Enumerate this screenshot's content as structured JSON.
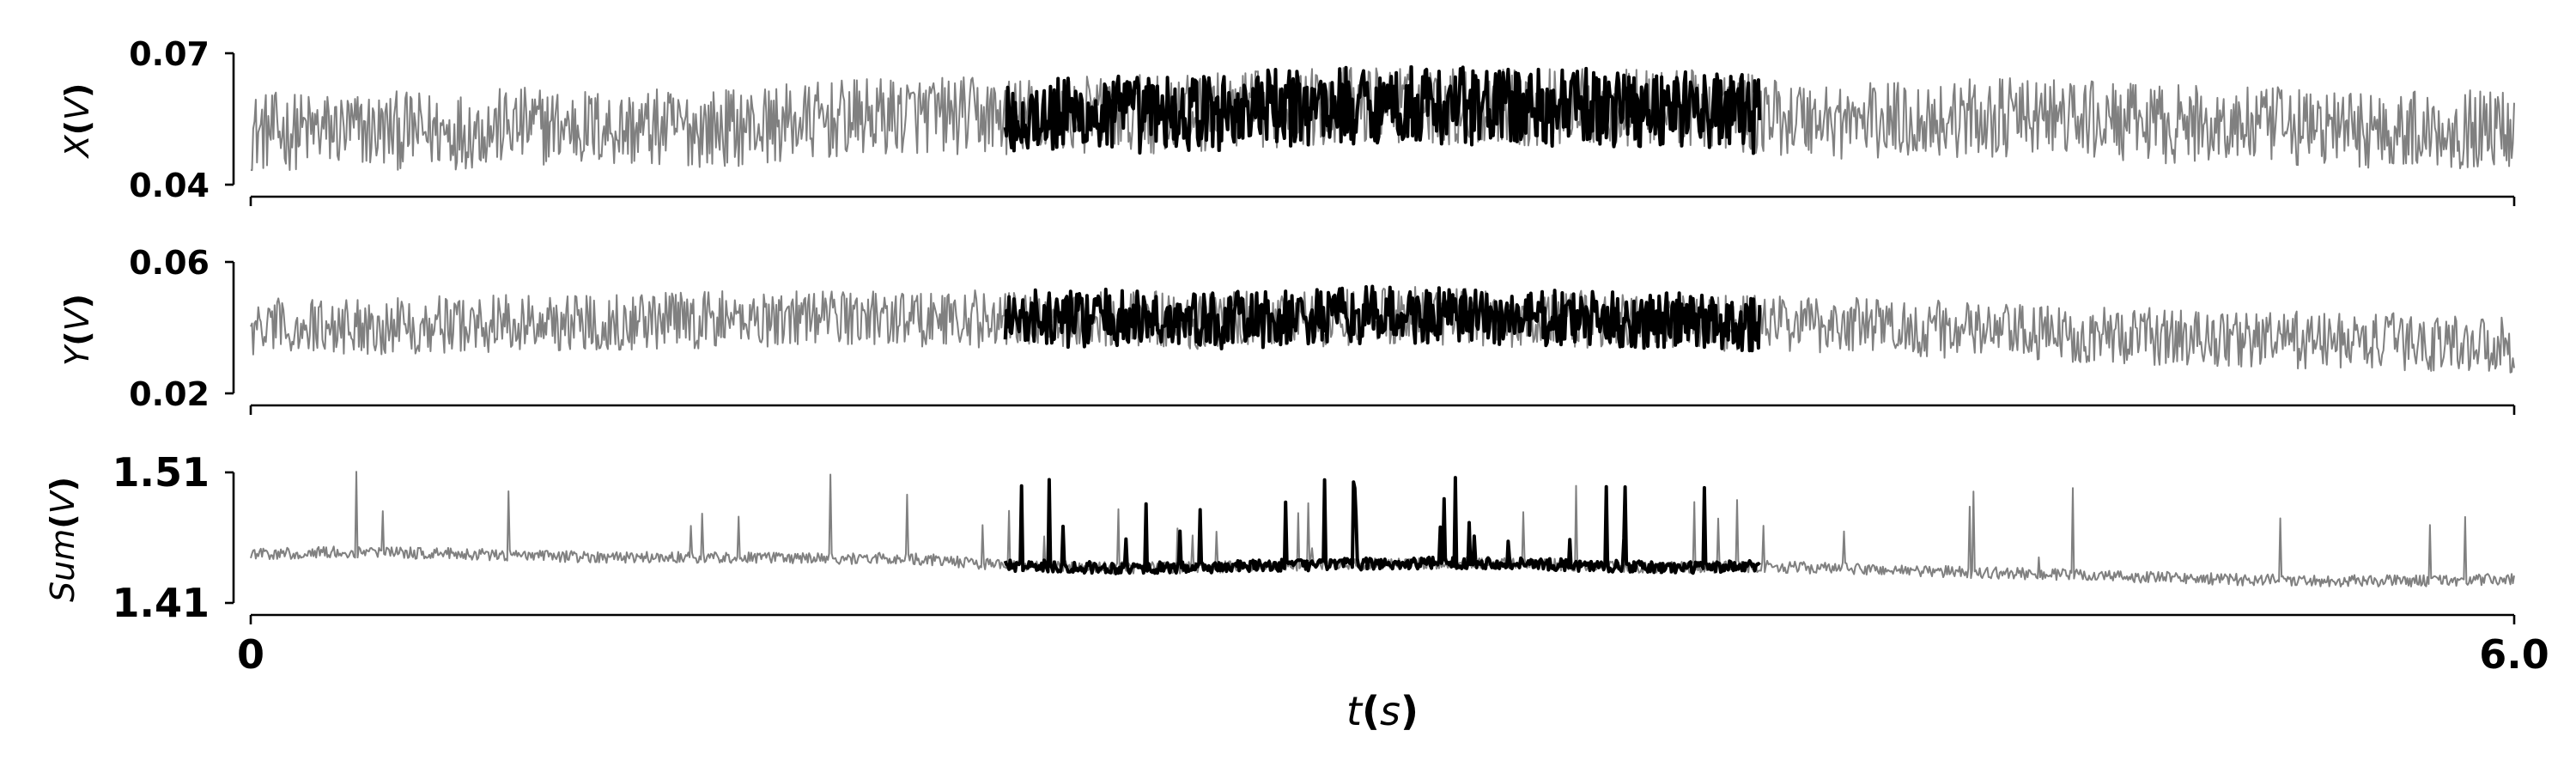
{
  "chart_data": [
    {
      "type": "line",
      "ylabel": "X(V)",
      "yticks": [
        "0.04",
        "0.07"
      ],
      "ylim": [
        0.04,
        0.07
      ],
      "x_unit": "s",
      "highlight_range": [
        2.0,
        4.0
      ],
      "series": [
        {
          "color": "#808080",
          "x": [
            0.0,
            0.25,
            0.5,
            0.75,
            1.0,
            1.25,
            1.5,
            1.75,
            2.0,
            2.25,
            2.5,
            2.75,
            3.0,
            3.25,
            3.5,
            3.75,
            4.0,
            4.25,
            4.5,
            4.75,
            5.0,
            5.25,
            5.5,
            5.75,
            6.0
          ],
          "y": [
            0.052,
            0.0525,
            0.0522,
            0.0535,
            0.0528,
            0.053,
            0.0545,
            0.056,
            0.0555,
            0.056,
            0.0562,
            0.0575,
            0.0585,
            0.058,
            0.0575,
            0.0578,
            0.056,
            0.0545,
            0.055,
            0.0555,
            0.054,
            0.0535,
            0.053,
            0.0525,
            0.053
          ]
        },
        {
          "color": "#000000",
          "x": [
            2.0,
            2.25,
            2.5,
            2.75,
            3.0,
            3.25,
            3.5,
            3.75,
            4.0
          ],
          "y": [
            0.0555,
            0.056,
            0.0562,
            0.0575,
            0.0585,
            0.058,
            0.0575,
            0.0578,
            0.056
          ]
        }
      ]
    },
    {
      "type": "line",
      "ylabel": "Y(V)",
      "yticks": [
        "0.02",
        "0.06"
      ],
      "ylim": [
        0.02,
        0.06
      ],
      "x_unit": "s",
      "highlight_range": [
        2.0,
        4.0
      ],
      "series": [
        {
          "color": "#808080",
          "x": [
            0.0,
            0.25,
            0.5,
            0.75,
            1.0,
            1.25,
            1.5,
            1.75,
            2.0,
            2.25,
            2.5,
            2.75,
            3.0,
            3.25,
            3.5,
            3.75,
            4.0,
            4.25,
            4.5,
            4.75,
            5.0,
            5.25,
            5.5,
            5.75,
            6.0
          ],
          "y": [
            0.04,
            0.0405,
            0.041,
            0.0415,
            0.042,
            0.0425,
            0.0435,
            0.043,
            0.0425,
            0.043,
            0.042,
            0.0425,
            0.044,
            0.043,
            0.0425,
            0.042,
            0.0415,
            0.041,
            0.0395,
            0.038,
            0.0375,
            0.0365,
            0.036,
            0.0355,
            0.035
          ]
        },
        {
          "color": "#000000",
          "x": [
            2.0,
            2.25,
            2.5,
            2.75,
            3.0,
            3.25,
            3.5,
            3.75,
            4.0
          ],
          "y": [
            0.0425,
            0.043,
            0.042,
            0.0425,
            0.044,
            0.043,
            0.0425,
            0.042,
            0.0415
          ]
        }
      ]
    },
    {
      "type": "line",
      "ylabel": "Sum(V)",
      "yticks": [
        "1.41",
        "1.51"
      ],
      "ylim": [
        1.41,
        1.51
      ],
      "x_unit": "s",
      "highlight_range": [
        2.0,
        4.0
      ],
      "series": [
        {
          "color": "#808080",
          "x": [
            0.0,
            0.25,
            0.5,
            0.75,
            1.0,
            1.25,
            1.5,
            1.75,
            2.0,
            2.25,
            2.5,
            2.75,
            3.0,
            3.25,
            3.5,
            3.75,
            4.0,
            4.25,
            4.5,
            4.75,
            5.0,
            5.25,
            5.5,
            5.75,
            6.0
          ],
          "y": [
            1.447,
            1.449,
            1.448,
            1.446,
            1.445,
            1.445,
            1.444,
            1.444,
            1.439,
            1.437,
            1.437,
            1.439,
            1.44,
            1.441,
            1.439,
            1.437,
            1.438,
            1.436,
            1.434,
            1.432,
            1.43,
            1.428,
            1.427,
            1.427,
            1.428
          ]
        },
        {
          "color": "#000000",
          "x": [
            2.0,
            2.25,
            2.5,
            2.75,
            3.0,
            3.25,
            3.5,
            3.75,
            4.0
          ],
          "y": [
            1.439,
            1.437,
            1.437,
            1.439,
            1.44,
            1.441,
            1.439,
            1.437,
            1.438
          ]
        }
      ]
    }
  ],
  "xaxis": {
    "label": "t(s)",
    "label_var": "t",
    "label_open": "(",
    "label_unit": "s",
    "label_close": ")",
    "ticks": [
      "0",
      "6.0"
    ],
    "xlim": [
      0,
      6.0
    ]
  },
  "ylabels": [
    {
      "var": "X",
      "open": "(",
      "unit": "V",
      "close": ")"
    },
    {
      "var": "Y",
      "open": "(",
      "unit": "V",
      "close": ")"
    },
    {
      "var": "Sum",
      "open": "(",
      "unit": "V",
      "close": ")"
    }
  ]
}
